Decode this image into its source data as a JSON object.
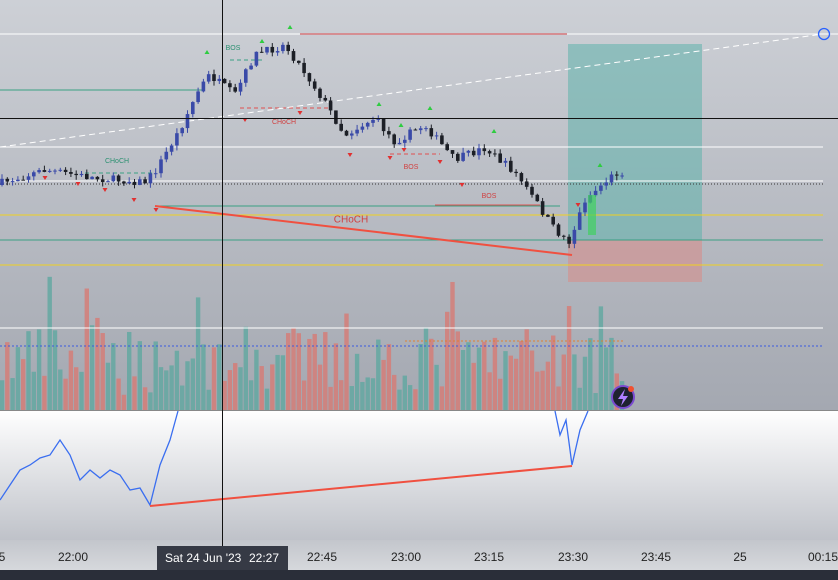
{
  "chart_labels": [
    {
      "text": "BOS",
      "kind": "bullish"
    },
    {
      "text": "CHoCH",
      "kind": "bullish"
    },
    {
      "text": "CHoCH",
      "kind": "bearish"
    },
    {
      "text": "BOS",
      "kind": "bearish"
    },
    {
      "text": "BOS",
      "kind": "bearish"
    },
    {
      "text": "CHoCH",
      "kind": "bearish"
    }
  ],
  "time_axis": [
    "5",
    "22:00",
    "22:45",
    "23:00",
    "23:15",
    "23:30",
    "23:45",
    "25",
    "00:15"
  ],
  "crosshair": {
    "date": "Sat 24 Jun '23",
    "time": "22:27"
  }
}
